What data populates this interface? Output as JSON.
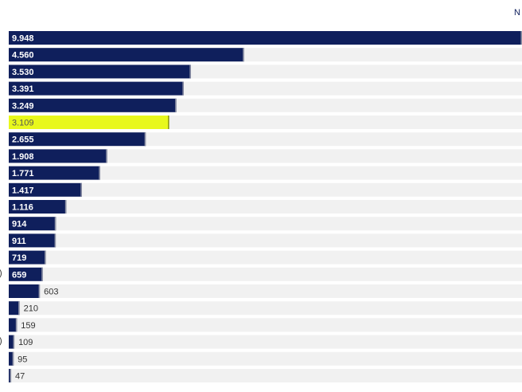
{
  "header": {
    "corner_text": "N"
  },
  "edge_marks": [
    {
      "row": 14,
      "text": ")"
    },
    {
      "row": 18,
      "text": ")"
    }
  ],
  "colors": {
    "bar": "#0f1f5c",
    "highlight": "#e8f81c",
    "track": "#f1f1f1",
    "label_inside": "#ffffff",
    "label_outside": "#333333"
  },
  "chart_data": {
    "type": "bar",
    "orientation": "horizontal",
    "title": "",
    "xlabel": "",
    "ylabel": "",
    "xlim": [
      0,
      9948
    ],
    "highlight_index": 5,
    "value_labels": [
      "9.948",
      "4.560",
      "3.530",
      "3.391",
      "3.249",
      "3.109",
      "2.655",
      "1.908",
      "1.771",
      "1.417",
      "1.116",
      "914",
      "911",
      "719",
      "659",
      "603",
      "210",
      "159",
      "109",
      "95",
      "47"
    ],
    "values": [
      9948,
      4560,
      3530,
      3391,
      3249,
      3109,
      2655,
      1908,
      1771,
      1417,
      1116,
      914,
      911,
      719,
      659,
      603,
      210,
      159,
      109,
      95,
      47
    ]
  }
}
